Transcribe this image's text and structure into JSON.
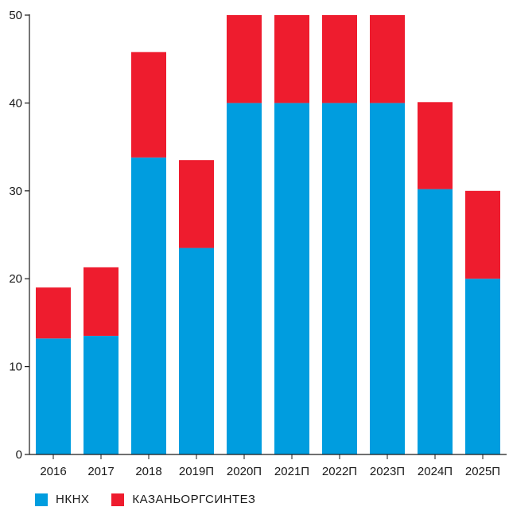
{
  "chart_data": {
    "type": "bar",
    "stacked": true,
    "categories": [
      "2016",
      "2017",
      "2018",
      "2019П",
      "2020П",
      "2021П",
      "2022П",
      "2023П",
      "2024П",
      "2025П"
    ],
    "series": [
      {
        "name": "НКНХ",
        "color": "#009ddf",
        "values": [
          13.2,
          13.5,
          33.8,
          23.5,
          40,
          40,
          40,
          40,
          30.2,
          20
        ]
      },
      {
        "name": "КАЗАНЬОРГСИНТЕЗ",
        "color": "#ee1c2e",
        "values": [
          5.8,
          7.8,
          12.0,
          10.0,
          10,
          10,
          10,
          10,
          9.9,
          10
        ]
      }
    ],
    "yticks": [
      0,
      10,
      20,
      30,
      40,
      50
    ],
    "ylim": [
      0,
      50
    ],
    "xlabel": "",
    "ylabel": "",
    "title": "",
    "grid": false,
    "legend_position": "bottom-left"
  }
}
